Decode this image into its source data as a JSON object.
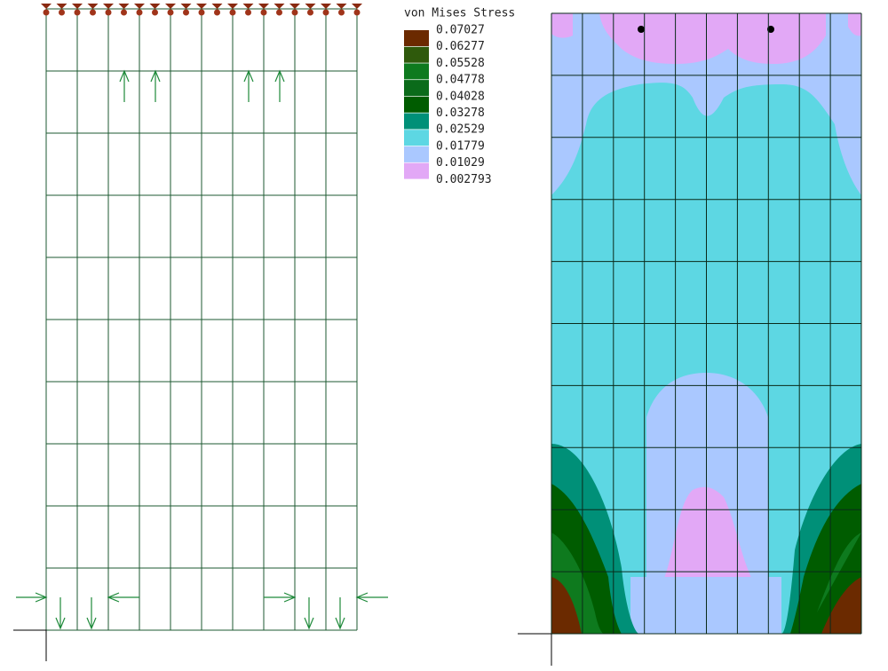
{
  "legend": {
    "title": "von Mises Stress",
    "labels": [
      "0.07027",
      "0.06277",
      "0.05528",
      "0.04778",
      "0.04028",
      "0.03278",
      "0.02529",
      "0.01779",
      "0.01029",
      "0.002793"
    ],
    "colors": [
      "#6b2a00",
      "#2f5a0c",
      "#0e7a1e",
      "#0b6b1a",
      "#005c00",
      "#009078",
      "#5dd7e3",
      "#aac8ff",
      "#e2a8f6"
    ]
  }
}
